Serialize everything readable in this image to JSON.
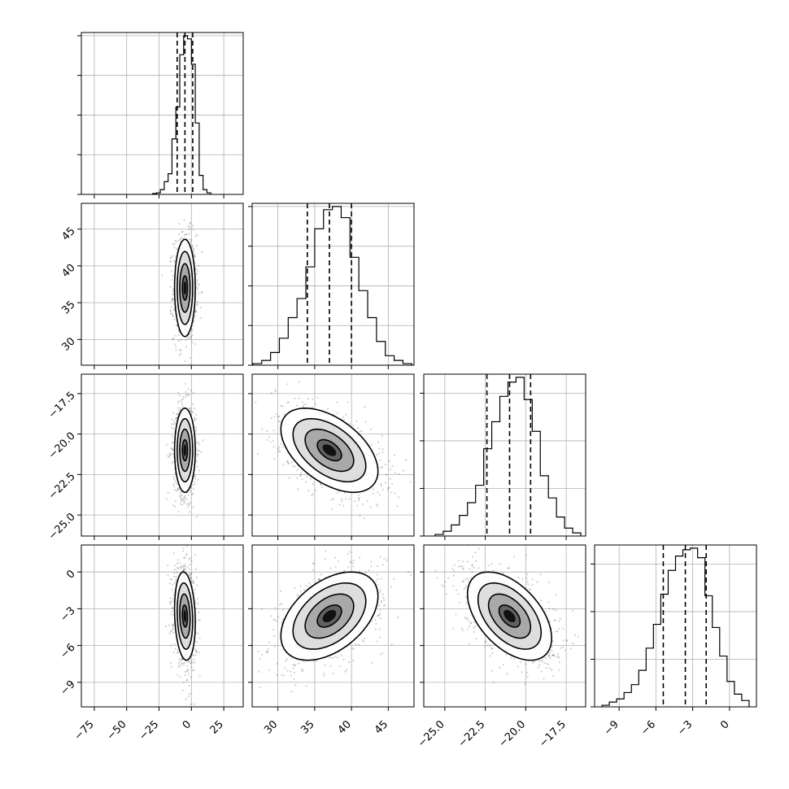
{
  "chart_data": {
    "type": "corner",
    "grid": true,
    "parameters": [
      {
        "range": [
          -85,
          40
        ],
        "ticks": [
          -75,
          -50,
          -25,
          0,
          25
        ],
        "tick_labels": [
          "−75",
          "−50",
          "−25",
          "0",
          "25"
        ],
        "median": -5.0,
        "quantiles": [
          -11.0,
          -5.0,
          1.0
        ],
        "hist": {
          "bins": [
            -30,
            -27,
            -24,
            -21,
            -18,
            -15,
            -12,
            -9,
            -6,
            -3,
            0,
            3,
            6,
            9,
            12,
            15
          ],
          "counts": [
            0.005,
            0.01,
            0.03,
            0.08,
            0.13,
            0.35,
            0.55,
            0.88,
            1.0,
            0.98,
            0.82,
            0.45,
            0.12,
            0.03,
            0.01
          ]
        },
        "hist_ticks": [
          0,
          0.25,
          0.5,
          0.75,
          1.0
        ]
      },
      {
        "range": [
          26.5,
          48.5
        ],
        "ticks": [
          30,
          35,
          40,
          45
        ],
        "tick_labels": [
          "30",
          "35",
          "40",
          "45"
        ],
        "median": 37.0,
        "quantiles": [
          34.0,
          37.0,
          40.0
        ],
        "hist": {
          "bins": [
            26.6,
            27.8,
            29,
            30.2,
            31.4,
            32.6,
            33.8,
            35,
            36.2,
            37.4,
            38.6,
            39.8,
            41,
            42.2,
            43.4,
            44.6,
            45.8,
            47,
            48.2
          ],
          "counts": [
            0.01,
            0.03,
            0.08,
            0.17,
            0.3,
            0.42,
            0.62,
            0.86,
            0.98,
            1.0,
            0.93,
            0.68,
            0.47,
            0.3,
            0.15,
            0.06,
            0.03,
            0.01
          ]
        },
        "hist_ticks": [
          0,
          0.25,
          0.5,
          0.75,
          1.0
        ]
      },
      {
        "range": [
          -26.3,
          -16.3
        ],
        "ticks": [
          -25,
          -22.5,
          -20,
          -17.5
        ],
        "tick_labels": [
          "−25.0",
          "−22.5",
          "−20.0",
          "−17.5"
        ],
        "median": -21.0,
        "quantiles": [
          -22.4,
          -21.0,
          -19.7
        ],
        "hist": {
          "bins": [
            -25.6,
            -25.1,
            -24.6,
            -24.1,
            -23.6,
            -23.1,
            -22.6,
            -22.1,
            -21.6,
            -21.1,
            -20.6,
            -20.1,
            -19.6,
            -19.1,
            -18.6,
            -18.1,
            -17.6,
            -17.1,
            -16.6
          ],
          "counts": [
            0.01,
            0.03,
            0.07,
            0.13,
            0.21,
            0.32,
            0.55,
            0.72,
            0.88,
            0.97,
            1.0,
            0.86,
            0.66,
            0.38,
            0.24,
            0.12,
            0.05,
            0.02
          ]
        },
        "hist_ticks": [
          0,
          0.3,
          0.6,
          0.9
        ]
      },
      {
        "range": [
          -11,
          2.2
        ],
        "ticks": [
          -9,
          -6,
          -3,
          0
        ],
        "tick_labels": [
          "−9",
          "−6",
          "−3",
          "0"
        ],
        "median": -3.6,
        "quantiles": [
          -5.4,
          -3.6,
          -1.9
        ],
        "hist": {
          "bins": [
            -10.4,
            -9.8,
            -9.2,
            -8.6,
            -8.0,
            -7.4,
            -6.8,
            -6.2,
            -5.6,
            -5.0,
            -4.4,
            -3.8,
            -3.2,
            -2.6,
            -2.0,
            -1.4,
            -0.8,
            -0.2,
            0.4,
            1.0,
            1.6
          ],
          "counts": [
            0.01,
            0.03,
            0.05,
            0.09,
            0.14,
            0.23,
            0.37,
            0.52,
            0.71,
            0.86,
            0.95,
            0.99,
            1.0,
            0.94,
            0.7,
            0.5,
            0.32,
            0.16,
            0.08,
            0.04
          ]
        },
        "hist_ticks": [
          0,
          0.3,
          0.6,
          0.9
        ]
      }
    ],
    "correlations": [
      [
        1.0,
        0.0,
        0.0,
        -0.15
      ],
      [
        0.0,
        1.0,
        -0.5,
        0.45
      ],
      [
        0.0,
        -0.5,
        1.0,
        -0.5
      ],
      [
        -0.15,
        0.45,
        -0.5,
        1.0
      ]
    ],
    "scatter": [
      {
        "row": 1,
        "col": 0,
        "x_center": -5,
        "x_sd": 4,
        "y_center": 37,
        "y_sd": 3.3
      },
      {
        "row": 2,
        "col": 0,
        "x_center": -5,
        "x_sd": 4,
        "y_center": -21,
        "y_sd": 1.3
      },
      {
        "row": 2,
        "col": 1,
        "x_center": 37,
        "x_sd": 3.3,
        "y_center": -21,
        "y_sd": 1.3
      },
      {
        "row": 3,
        "col": 0,
        "x_center": -5,
        "x_sd": 4,
        "y_center": -3.6,
        "y_sd": 1.8
      },
      {
        "row": 3,
        "col": 1,
        "x_center": 37,
        "x_sd": 3.3,
        "y_center": -3.6,
        "y_sd": 1.8
      },
      {
        "row": 3,
        "col": 2,
        "x_center": -21,
        "x_sd": 1.3,
        "y_center": -3.6,
        "y_sd": 1.8
      }
    ],
    "contour_levels_sigma": [
      0.5,
      1.0,
      1.5,
      2.0
    ]
  }
}
